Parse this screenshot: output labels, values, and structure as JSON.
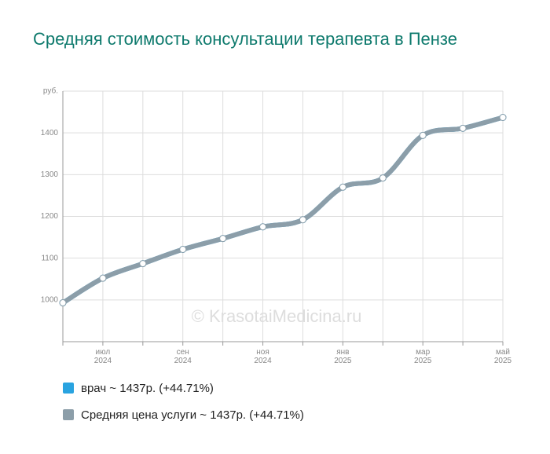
{
  "chart_data": {
    "type": "line",
    "title": "Средняя стоимость консультации терапевта в Пензе",
    "watermark": "© KrasotaiMedicina.ru",
    "categories": [
      null,
      "июл 2024",
      null,
      "сен 2024",
      null,
      "ноя 2024",
      null,
      "янв 2025",
      null,
      "мар 2025",
      null,
      "май 2025"
    ],
    "series": [
      {
        "name": "врач ~ 1437р. (+44.71%)",
        "color": "#29a3e0",
        "values": [
          993,
          1052,
          1087,
          1121,
          1147,
          1175,
          1192,
          1270,
          1292,
          1394,
          1411,
          1437
        ]
      },
      {
        "name": "Средняя цена услуги ~ 1437р. (+44.71%)",
        "color": "#8c9ea9",
        "values": [
          993,
          1052,
          1087,
          1121,
          1147,
          1175,
          1192,
          1270,
          1292,
          1394,
          1411,
          1437
        ]
      }
    ],
    "ylim": [
      900,
      1500
    ],
    "yticks": [
      1000,
      1100,
      1200,
      1300,
      1400,
      {
        "value": 1500,
        "label": "руб."
      }
    ],
    "grid": true
  }
}
